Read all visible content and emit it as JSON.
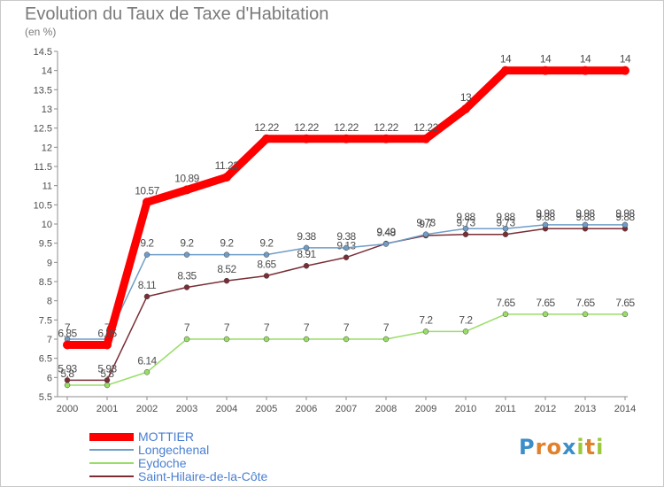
{
  "title": "Evolution du Taux de Taxe d'Habitation",
  "subtitle": "(en %)",
  "brand": {
    "letters": [
      {
        "ch": "P",
        "color": "#3b8ec9"
      },
      {
        "ch": "r",
        "color": "#e0812b"
      },
      {
        "ch": "o",
        "color": "#e0812b"
      },
      {
        "ch": "x",
        "color": "#3b8ec9"
      },
      {
        "ch": "i",
        "color": "#9ac93b"
      },
      {
        "ch": "t",
        "color": "#e0812b"
      },
      {
        "ch": "i",
        "color": "#9ac93b"
      }
    ]
  },
  "chart_data": {
    "type": "line",
    "title": "Evolution du Taux de Taxe d'Habitation",
    "ylabel": "(en %)",
    "x": [
      2000,
      2001,
      2002,
      2003,
      2004,
      2005,
      2006,
      2007,
      2008,
      2009,
      2010,
      2011,
      2012,
      2013,
      2014
    ],
    "ylim": [
      5.5,
      14.5
    ],
    "yticks": [
      "5.5",
      "6",
      "6.5",
      "7",
      "7.5",
      "8",
      "8.5",
      "9",
      "9.5",
      "10",
      "10.5",
      "11",
      "11.5",
      "12",
      "12.5",
      "13",
      "13.5",
      "14",
      "14.5"
    ],
    "grid": false,
    "legend_position": "bottom-left",
    "series": [
      {
        "name": "MOTTIER",
        "color": "#ff0000",
        "values": [
          6.85,
          6.85,
          10.57,
          10.89,
          11.22,
          12.22,
          12.22,
          12.22,
          12.22,
          12.22,
          13,
          14,
          14,
          14,
          14
        ],
        "labels": [
          "6.85",
          "6.85",
          "10.57",
          "10.89",
          "11.22",
          "12.22",
          "12.22",
          "12.22",
          "12.22",
          "12.22",
          "13",
          "14",
          "14",
          "14",
          "14"
        ]
      },
      {
        "name": "Longechenal",
        "color": "#6f9dc8",
        "values": [
          7,
          7,
          9.2,
          9.2,
          9.2,
          9.2,
          9.38,
          9.38,
          9.48,
          9.73,
          9.88,
          9.88,
          9.98,
          9.98,
          9.98
        ],
        "labels": [
          "7",
          "7",
          "9.2",
          "9.2",
          "9.2",
          "9.2",
          "9.38",
          "9.38",
          "9.48",
          "9.73",
          "9.88",
          "9.88",
          "9.98",
          "9.98",
          "9.98"
        ]
      },
      {
        "name": "Eydoche",
        "color": "#99dd66",
        "values": [
          5.8,
          5.8,
          6.14,
          7,
          7,
          7,
          7,
          7,
          7,
          7.2,
          7.2,
          7.65,
          7.65,
          7.65,
          7.65
        ],
        "labels": [
          "5.8",
          "5.8",
          "6.14",
          "7",
          "7",
          "7",
          "7",
          "7",
          "7",
          "7.2",
          "7.2",
          "7.65",
          "7.65",
          "7.65",
          "7.65"
        ]
      },
      {
        "name": "Saint-Hilaire-de-la-Côte",
        "color": "#7a2d35",
        "values": [
          5.93,
          5.93,
          8.11,
          8.35,
          8.52,
          8.65,
          8.91,
          9.13,
          9.49,
          9.7,
          9.73,
          9.73,
          9.88,
          9.88,
          9.88
        ],
        "labels": [
          "5.93",
          "5.93",
          "8.11",
          "8.35",
          "8.52",
          "8.65",
          "8.91",
          "9.13",
          "9.49",
          "9.7",
          "9.73",
          "9.73",
          "9.88",
          "9.88",
          "9.88"
        ]
      }
    ]
  }
}
